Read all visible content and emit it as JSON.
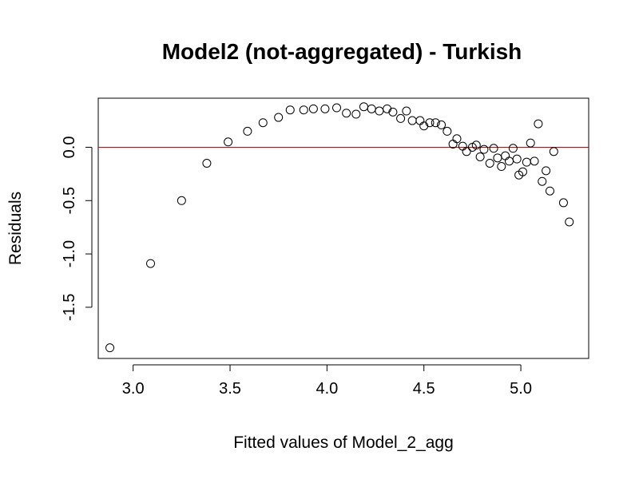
{
  "chart_data": {
    "type": "scatter",
    "title": "Model2 (not-aggregated) - Turkish",
    "xlabel": "Fitted values of Model_2_agg",
    "ylabel": "Residuals",
    "xlim": [
      2.82,
      5.35
    ],
    "ylim": [
      -1.98,
      0.46
    ],
    "x_ticks": [
      3.0,
      3.5,
      4.0,
      4.5,
      5.0
    ],
    "x_tick_labels": [
      "3.0",
      "3.5",
      "4.0",
      "4.5",
      "5.0"
    ],
    "y_ticks": [
      -1.5,
      -1.0,
      -0.5,
      0.0
    ],
    "y_tick_labels": [
      "-1.5",
      "-1.0",
      "-0.5",
      "0.0"
    ],
    "reference_line": {
      "y": 0,
      "color": "#d40000"
    },
    "grid": false,
    "legend": "none",
    "marker": {
      "shape": "open-circle",
      "color": "#000000"
    },
    "points": [
      [
        2.88,
        -1.88
      ],
      [
        3.09,
        -1.09
      ],
      [
        3.25,
        -0.5
      ],
      [
        3.38,
        -0.15
      ],
      [
        3.49,
        0.05
      ],
      [
        3.59,
        0.15
      ],
      [
        3.67,
        0.23
      ],
      [
        3.75,
        0.28
      ],
      [
        3.81,
        0.35
      ],
      [
        3.88,
        0.35
      ],
      [
        3.93,
        0.36
      ],
      [
        3.99,
        0.36
      ],
      [
        4.05,
        0.37
      ],
      [
        4.1,
        0.32
      ],
      [
        4.15,
        0.31
      ],
      [
        4.19,
        0.38
      ],
      [
        4.23,
        0.36
      ],
      [
        4.27,
        0.34
      ],
      [
        4.31,
        0.36
      ],
      [
        4.34,
        0.33
      ],
      [
        4.38,
        0.27
      ],
      [
        4.41,
        0.34
      ],
      [
        4.44,
        0.25
      ],
      [
        4.48,
        0.25
      ],
      [
        4.5,
        0.2
      ],
      [
        4.53,
        0.23
      ],
      [
        4.56,
        0.23
      ],
      [
        4.59,
        0.21
      ],
      [
        4.62,
        0.15
      ],
      [
        4.65,
        0.03
      ],
      [
        4.67,
        0.08
      ],
      [
        4.7,
        0.01
      ],
      [
        4.72,
        -0.04
      ],
      [
        4.75,
        0.0
      ],
      [
        4.77,
        0.02
      ],
      [
        4.79,
        -0.09
      ],
      [
        4.81,
        -0.02
      ],
      [
        4.84,
        -0.15
      ],
      [
        4.86,
        -0.01
      ],
      [
        4.88,
        -0.1
      ],
      [
        4.9,
        -0.18
      ],
      [
        4.92,
        -0.08
      ],
      [
        4.94,
        -0.13
      ],
      [
        4.96,
        -0.01
      ],
      [
        4.98,
        -0.11
      ],
      [
        4.99,
        -0.26
      ],
      [
        5.01,
        -0.23
      ],
      [
        5.03,
        -0.14
      ],
      [
        5.05,
        0.04
      ],
      [
        5.07,
        -0.13
      ],
      [
        5.09,
        0.22
      ],
      [
        5.11,
        -0.32
      ],
      [
        5.13,
        -0.22
      ],
      [
        5.15,
        -0.41
      ],
      [
        5.17,
        -0.04
      ],
      [
        5.22,
        -0.52
      ],
      [
        5.25,
        -0.7
      ]
    ]
  }
}
